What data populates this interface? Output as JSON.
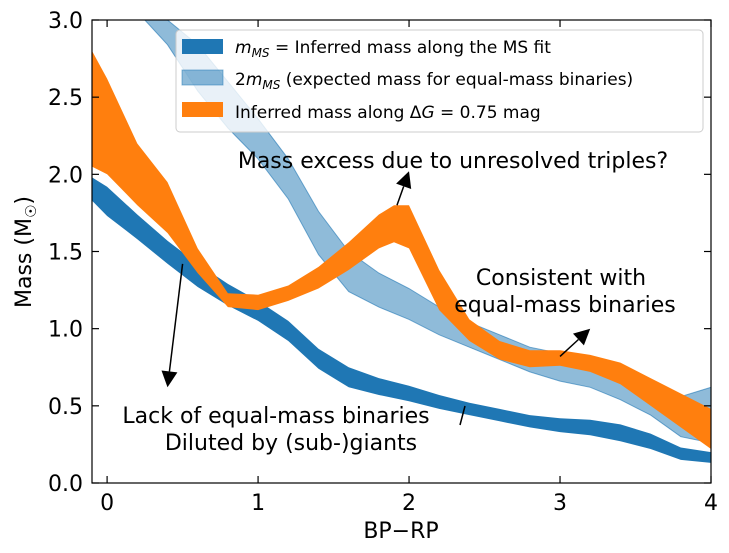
{
  "chart_data": {
    "type": "area",
    "xlabel": "BP−RP",
    "ylabel": "Mass (M",
    "ylabel_sub": "☉",
    "ylabel_close": ")",
    "xlim": [
      -0.1,
      4.0
    ],
    "ylim": [
      0.0,
      3.0
    ],
    "x_ticks": [
      0,
      1,
      2,
      3,
      4
    ],
    "y_ticks": [
      0.0,
      0.5,
      1.0,
      1.5,
      2.0,
      2.5,
      3.0
    ],
    "x_tick_labels": [
      "0",
      "1",
      "2",
      "3",
      "4"
    ],
    "y_tick_labels": [
      "0.0",
      "0.5",
      "1.0",
      "1.5",
      "2.0",
      "2.5",
      "3.0"
    ],
    "series": [
      {
        "name": "m_MS = Inferred mass along the MS fit",
        "color": "#1f77b4",
        "opacity": 1.0,
        "x": [
          -0.1,
          0.0,
          0.2,
          0.4,
          0.6,
          0.8,
          1.0,
          1.2,
          1.4,
          1.6,
          1.8,
          2.0,
          2.2,
          2.4,
          2.6,
          2.8,
          3.0,
          3.2,
          3.4,
          3.6,
          3.8,
          4.0
        ],
        "lower": [
          1.83,
          1.73,
          1.58,
          1.42,
          1.27,
          1.15,
          1.05,
          0.92,
          0.74,
          0.62,
          0.57,
          0.53,
          0.48,
          0.44,
          0.4,
          0.36,
          0.33,
          0.31,
          0.27,
          0.22,
          0.15,
          0.13
        ],
        "upper": [
          1.98,
          1.92,
          1.74,
          1.57,
          1.42,
          1.29,
          1.18,
          1.05,
          0.87,
          0.75,
          0.68,
          0.63,
          0.57,
          0.52,
          0.48,
          0.44,
          0.42,
          0.41,
          0.38,
          0.32,
          0.23,
          0.2
        ]
      },
      {
        "name": "2m_MS (expected mass for equal-mass binaries)",
        "color": "#1f77b4",
        "opacity": 0.5,
        "x": [
          0.25,
          0.4,
          0.6,
          0.8,
          1.0,
          1.2,
          1.4,
          1.6,
          1.8,
          2.0,
          2.2,
          2.4,
          2.6,
          2.8,
          3.0,
          3.2,
          3.4,
          3.6,
          3.8,
          4.0
        ],
        "lower": [
          3.0,
          2.84,
          2.54,
          2.3,
          2.1,
          1.84,
          1.48,
          1.24,
          1.14,
          1.06,
          0.96,
          0.88,
          0.8,
          0.72,
          0.66,
          0.62,
          0.54,
          0.44,
          0.3,
          0.26
        ],
        "upper": [
          3.0,
          3.0,
          2.84,
          2.6,
          2.36,
          2.1,
          1.76,
          1.5,
          1.36,
          1.26,
          1.14,
          1.04,
          0.96,
          0.88,
          0.84,
          0.82,
          0.76,
          0.66,
          0.56,
          0.62
        ]
      },
      {
        "name": "Inferred mass along ΔG = 0.75 mag",
        "color": "#ff7f0e",
        "opacity": 1.0,
        "x": [
          -0.1,
          0.0,
          0.2,
          0.4,
          0.6,
          0.8,
          1.0,
          1.2,
          1.4,
          1.6,
          1.8,
          1.9,
          2.0,
          2.2,
          2.4,
          2.6,
          2.8,
          3.0,
          3.2,
          3.4,
          3.6,
          3.8,
          4.0
        ],
        "lower": [
          2.05,
          2.0,
          1.8,
          1.62,
          1.36,
          1.14,
          1.12,
          1.18,
          1.26,
          1.38,
          1.52,
          1.56,
          1.52,
          1.12,
          0.92,
          0.8,
          0.75,
          0.76,
          0.72,
          0.64,
          0.5,
          0.36,
          0.22
        ],
        "upper": [
          2.8,
          2.62,
          2.2,
          1.95,
          1.52,
          1.23,
          1.22,
          1.28,
          1.4,
          1.56,
          1.74,
          1.8,
          1.8,
          1.38,
          1.06,
          0.92,
          0.86,
          0.86,
          0.83,
          0.78,
          0.68,
          0.58,
          0.48
        ]
      }
    ],
    "annotations": [
      {
        "text": "Mass excess due to unresolved triples?",
        "arrow_from": [
          1.92,
          1.8
        ],
        "arrow_to": [
          2.0,
          2.02
        ]
      },
      {
        "text": "Consistent with",
        "text2": "equal-mass binaries",
        "arrow_from": [
          3.0,
          0.82
        ],
        "arrow_to": [
          3.2,
          1.0
        ]
      },
      {
        "text": "Lack of equal-mass binaries",
        "text2": "Diluted by (sub-)giants",
        "arrow_from": [
          0.5,
          1.42
        ],
        "arrow_to": [
          0.4,
          0.62
        ]
      }
    ],
    "legend_position": "top-right",
    "grid": false
  }
}
